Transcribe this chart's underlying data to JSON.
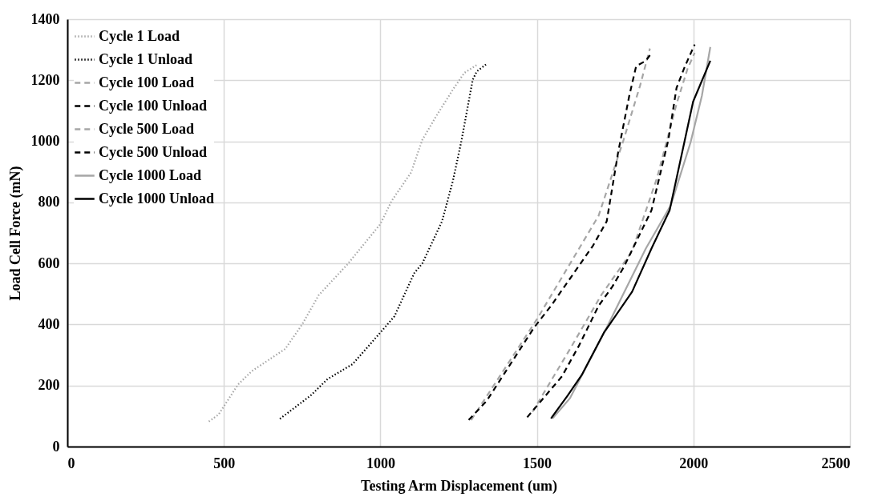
{
  "chart_data": {
    "type": "line",
    "xlabel": "Testing Arm  Displacement (um)",
    "ylabel": "Load Cell Force (mN)",
    "xlim": [
      0,
      2500
    ],
    "xticks": [
      0,
      500,
      1000,
      1500,
      2000,
      2500
    ],
    "ylim": [
      0,
      1400
    ],
    "yticks": [
      0,
      200,
      400,
      600,
      800,
      1000,
      1200,
      1400
    ],
    "grid": true,
    "legend": "top left",
    "marker": "none",
    "series": [
      {
        "name": "Cycle 1 Load",
        "color": "#a6a6a6",
        "line_style": "dotted",
        "x": [
          452,
          483,
          545,
          589,
          696,
          750,
          803,
          893,
          1000,
          1036,
          1098,
          1134,
          1178,
          1232,
          1268,
          1312
        ],
        "values": [
          82,
          105,
          203,
          247,
          320,
          400,
          496,
          595,
          729,
          805,
          898,
          1005,
          1082,
          1170,
          1224,
          1253
        ]
      },
      {
        "name": "Cycle 1 Unload",
        "color": "#000000",
        "line_style": "dotted",
        "x": [
          679,
          777,
          831,
          911,
          991,
          1045,
          1108,
          1134,
          1197,
          1232,
          1259,
          1282,
          1295,
          1308,
          1339
        ],
        "values": [
          91,
          167,
          221,
          270,
          363,
          427,
          568,
          600,
          738,
          872,
          1002,
          1130,
          1202,
          1229,
          1253
        ]
      },
      {
        "name": "Cycle 100 Load",
        "color": "#a6a6a6",
        "line_style": "dashed",
        "x": [
          1290,
          1500,
          1697,
          1777,
          1830,
          1861
        ],
        "values": [
          87,
          417,
          756,
          1005,
          1184,
          1304
        ]
      },
      {
        "name": "Cycle 100 Unload",
        "color": "#000000",
        "line_style": "dashed",
        "x": [
          1282,
          1339,
          1491,
          1545,
          1679,
          1723,
          1759,
          1795,
          1817,
          1848,
          1861
        ],
        "values": [
          87,
          149,
          390,
          461,
          658,
          738,
          961,
          1149,
          1246,
          1264,
          1282
        ]
      },
      {
        "name": "Cycle 500 Load",
        "color": "#a6a6a6",
        "line_style": "dashed",
        "x": [
          1486,
          1606,
          1706,
          1804,
          1884,
          1946,
          1981,
          2004
        ],
        "values": [
          114,
          320,
          497,
          640,
          881,
          1122,
          1237,
          1290
        ]
      },
      {
        "name": "Cycle 500 Unload",
        "color": "#000000",
        "line_style": "dashed",
        "x": [
          1469,
          1580,
          1633,
          1697,
          1741,
          1777,
          1866,
          1920,
          1946,
          1973,
          2004
        ],
        "values": [
          96,
          230,
          328,
          461,
          524,
          587,
          774,
          1005,
          1175,
          1246,
          1317
        ]
      },
      {
        "name": "Cycle 1000 Load",
        "color": "#a6a6a6",
        "line_style": "solid",
        "x": [
          1550,
          1606,
          1723,
          1848,
          1928,
          1991,
          2027,
          2054
        ],
        "values": [
          92,
          159,
          390,
          649,
          791,
          997,
          1149,
          1309
        ]
      },
      {
        "name": "Cycle 1000 Unload",
        "color": "#000000",
        "line_style": "solid",
        "x": [
          1545,
          1598,
          1643,
          1714,
          1804,
          1866,
          1924,
          1999,
          2054
        ],
        "values": [
          92,
          167,
          234,
          373,
          507,
          649,
          774,
          1130,
          1264
        ]
      }
    ]
  }
}
